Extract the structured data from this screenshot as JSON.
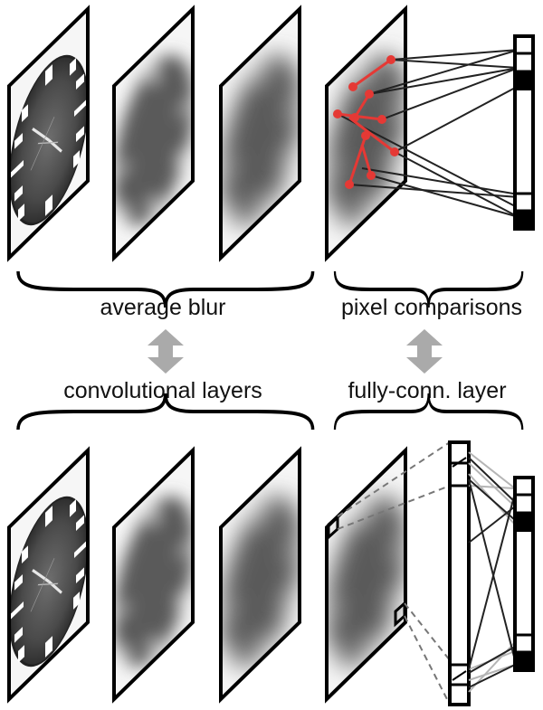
{
  "labels": {
    "average_blur": "average blur",
    "pixel_comparisons": "pixel comparisons",
    "convolutional_layers": "convolutional layers",
    "fully_connected_layer": "fully-conn. layer"
  },
  "colors": {
    "frame": "#000000",
    "arrow": "#aaaaaa",
    "comparison": "#e53935",
    "dashed": "#777777",
    "clock_dark": "#3f3f3f",
    "blur_gray": "#8a8a8a"
  },
  "icons": {
    "equivalence": "double-headed-vertical-arrow",
    "group": "curly-brace"
  }
}
